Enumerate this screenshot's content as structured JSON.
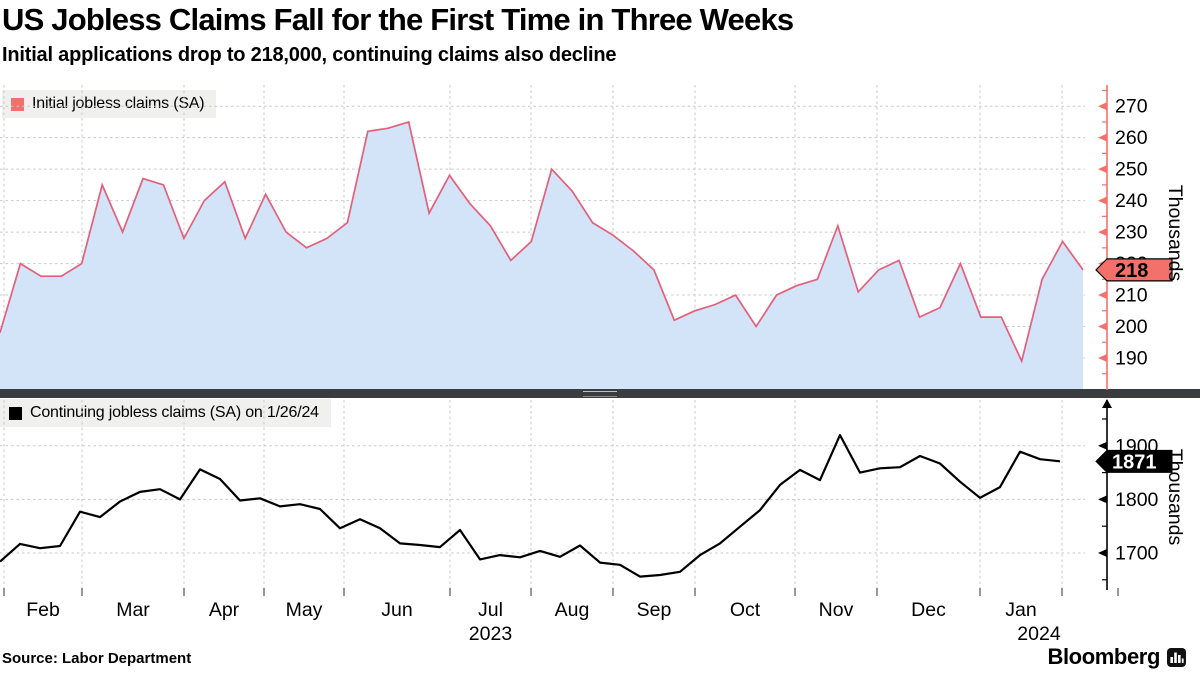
{
  "title": "US Jobless Claims Fall for the First Time in Three Weeks",
  "subtitle": "Initial applications drop to 218,000, continuing claims also decline",
  "source": "Source: Labor Department",
  "brand": {
    "name": "Bloomberg",
    "icon": "bar-chart-icon"
  },
  "colors": {
    "initial_line": "#e4607a",
    "initial_fill": "#d3e3f8",
    "initial_accent": "#f4716b",
    "continuing_line": "#000000",
    "grid": "#c8c8c8",
    "divider": "#3a3d40",
    "text": "#000000",
    "label_text_on_dark": "#ffffff"
  },
  "x_axis": {
    "months": [
      "Feb",
      "Mar",
      "Apr",
      "May",
      "Jun",
      "Jul",
      "Aug",
      "Sep",
      "Oct",
      "Nov",
      "Dec",
      "Jan"
    ],
    "year_labels": [
      {
        "text": "2023",
        "under_month": "Jul"
      },
      {
        "text": "2024",
        "under_month": "Jan"
      }
    ]
  },
  "chart_data": [
    {
      "type": "area",
      "series_name": "initial",
      "legend": "Initial jobless claims (SA)",
      "unit": "Thousands",
      "y_ticks": [
        190,
        200,
        210,
        220,
        230,
        240,
        250,
        260,
        270
      ],
      "y_minor_step": 5,
      "ylim": [
        183,
        273
      ],
      "grid": true,
      "legend_position": "top-left",
      "current_value": 218,
      "current_value_label": "218",
      "values": [
        198,
        220,
        216,
        216,
        220,
        245,
        230,
        247,
        245,
        228,
        240,
        246,
        228,
        242,
        230,
        225,
        228,
        233,
        262,
        263,
        265,
        236,
        248,
        239,
        232,
        221,
        227,
        250,
        243,
        233,
        229,
        224,
        218,
        202,
        205,
        207,
        210,
        200,
        210,
        213,
        215,
        232,
        211,
        218,
        221,
        203,
        206,
        220,
        203,
        203,
        189,
        215,
        227,
        218
      ]
    },
    {
      "type": "line",
      "series_name": "continuing",
      "legend": "Continuing jobless claims (SA) on 1/26/24",
      "unit": "Thousands",
      "y_ticks": [
        1700,
        1800,
        1900
      ],
      "y_minor_step": 50,
      "ylim": [
        1640,
        1955
      ],
      "grid": true,
      "legend_position": "top-left",
      "current_value": 1871,
      "current_value_label": "1871",
      "values": [
        1684,
        1717,
        1709,
        1713,
        1777,
        1767,
        1796,
        1814,
        1819,
        1800,
        1856,
        1838,
        1798,
        1802,
        1787,
        1791,
        1782,
        1746,
        1763,
        1746,
        1718,
        1715,
        1711,
        1743,
        1688,
        1696,
        1692,
        1704,
        1693,
        1714,
        1682,
        1678,
        1656,
        1659,
        1665,
        1696,
        1718,
        1749,
        1780,
        1827,
        1855,
        1836,
        1920,
        1850,
        1858,
        1860,
        1881,
        1867,
        1833,
        1803,
        1823,
        1889,
        1875,
        1871
      ]
    }
  ]
}
